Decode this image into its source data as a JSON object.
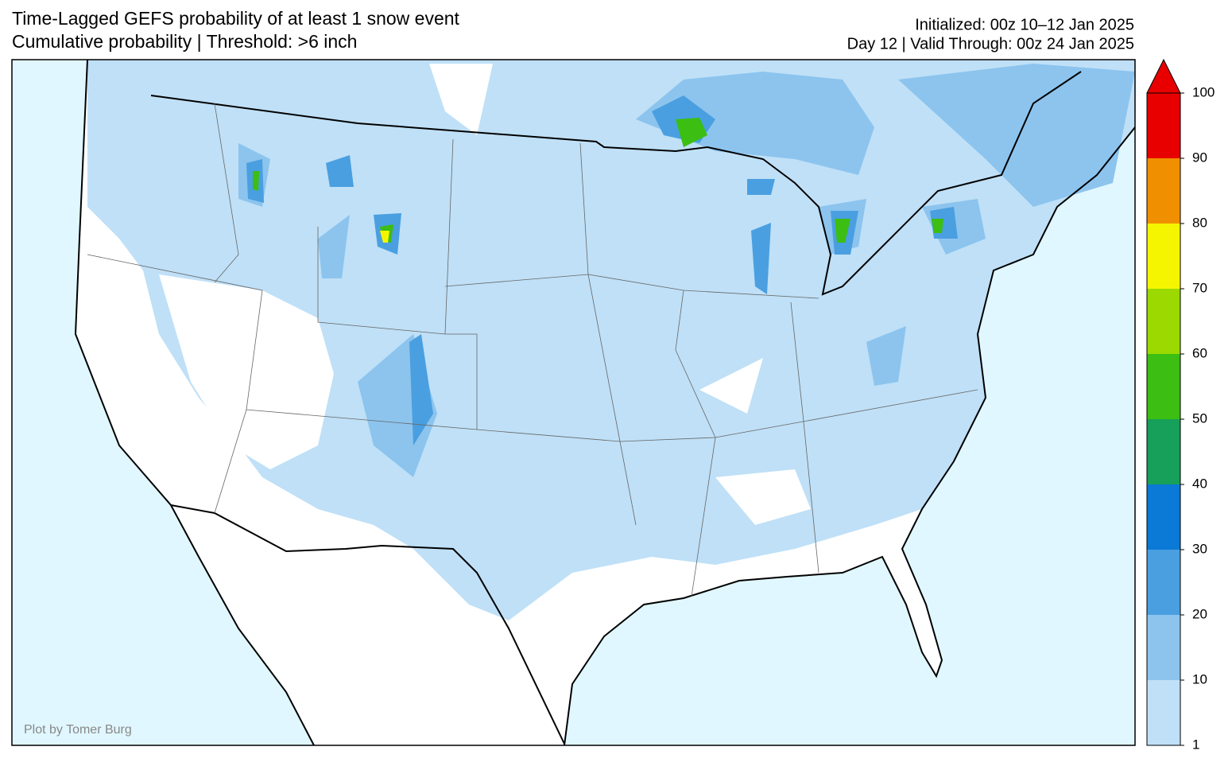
{
  "header": {
    "title": "Time-Lagged GEFS probability of at least 1 snow event",
    "subtitle": "Cumulative probability | Threshold: >6 inch",
    "initialized": "Initialized: 00z 10–12 Jan 2025",
    "valid": "Day 12 | Valid Through: 00z 24 Jan 2025"
  },
  "colorbar": {
    "ticks": [
      1,
      10,
      20,
      30,
      40,
      50,
      60,
      70,
      80,
      90,
      100
    ],
    "colors": [
      "#bfe0f7",
      "#8cc4ee",
      "#4a9fe0",
      "#0a7ad6",
      "#17a05a",
      "#3cbe12",
      "#9bd900",
      "#f5f500",
      "#f09000",
      "#e80000"
    ],
    "extend_color": "#e80000"
  },
  "credit": "Plot by Tomer Burg"
}
